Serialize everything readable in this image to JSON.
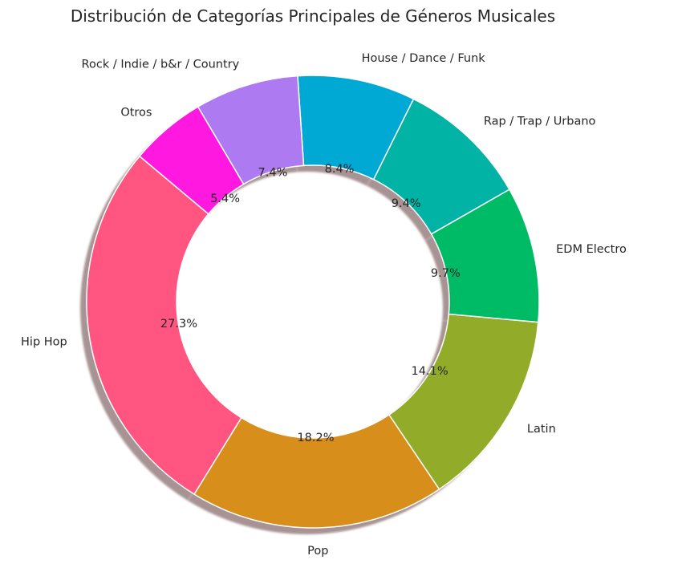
{
  "chart_data": {
    "type": "pie",
    "title": "Distribución de Categorías Principales de Géneros Musicales",
    "donut": true,
    "shadow": true,
    "categories": [
      "Hip Hop",
      "Pop",
      "Latin",
      "EDM Electro",
      "Rap / Trap / Urbano",
      "House / Dance / Funk",
      "Rock / Indie / b&r / Country",
      "Otros"
    ],
    "values": [
      27.3,
      18.2,
      14.1,
      9.7,
      9.4,
      8.4,
      7.4,
      5.4
    ],
    "value_labels": [
      "27.3%",
      "18.2%",
      "14.1%",
      "9.7%",
      "9.4%",
      "8.4%",
      "7.4%",
      "5.4%"
    ],
    "colors": [
      "#ff5580",
      "#d78e1a",
      "#92ab29",
      "#00bb66",
      "#00b3a5",
      "#00a8d4",
      "#ad7af2",
      "#ff18e0"
    ],
    "start_angle_deg": 140,
    "direction": "counterclockwise"
  }
}
